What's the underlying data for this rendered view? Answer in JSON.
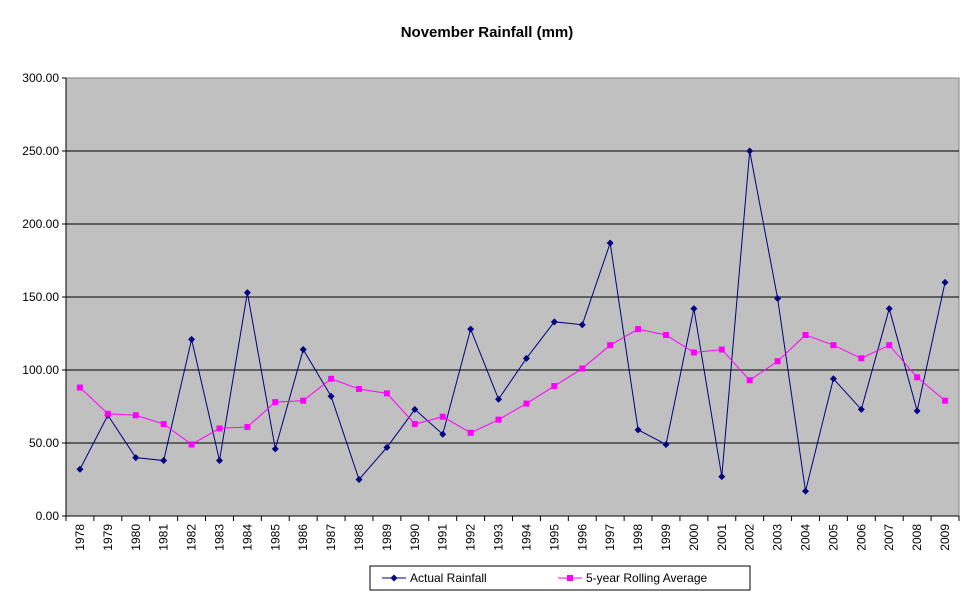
{
  "chart_data": {
    "type": "line",
    "title": "November Rainfall (mm)",
    "xlabel": "",
    "ylabel": "",
    "ylim": [
      0,
      300
    ],
    "yticks": [
      "0.00",
      "50.00",
      "100.00",
      "150.00",
      "200.00",
      "250.00",
      "300.00"
    ],
    "categories": [
      "1978",
      "1979",
      "1980",
      "1981",
      "1982",
      "1983",
      "1984",
      "1985",
      "1986",
      "1987",
      "1988",
      "1989",
      "1990",
      "1991",
      "1992",
      "1993",
      "1994",
      "1995",
      "1996",
      "1997",
      "1998",
      "1999",
      "2000",
      "2001",
      "2002",
      "2003",
      "2004",
      "2005",
      "2006",
      "2007",
      "2008",
      "2009"
    ],
    "grid": true,
    "legend_position": "bottom",
    "plot_background": "#c0c0c0",
    "series": [
      {
        "name": "Actual Rainfall",
        "color": "#000080",
        "marker": "diamond",
        "values": [
          32,
          69,
          40,
          38,
          121,
          38,
          153,
          46,
          114,
          82,
          25,
          47,
          73,
          56,
          128,
          80,
          108,
          133,
          131,
          187,
          59,
          49,
          142,
          27,
          250,
          149,
          17,
          94,
          73,
          142,
          72,
          160
        ]
      },
      {
        "name": "5-year Rolling Average",
        "color": "#ff00ff",
        "marker": "square",
        "values": [
          88,
          70,
          69,
          63,
          49,
          60,
          61,
          78,
          79,
          94,
          87,
          84,
          63,
          68,
          57,
          66,
          77,
          89,
          101,
          117,
          128,
          124,
          112,
          114,
          93,
          106,
          124,
          117,
          108,
          117,
          95,
          79
        ]
      }
    ]
  }
}
